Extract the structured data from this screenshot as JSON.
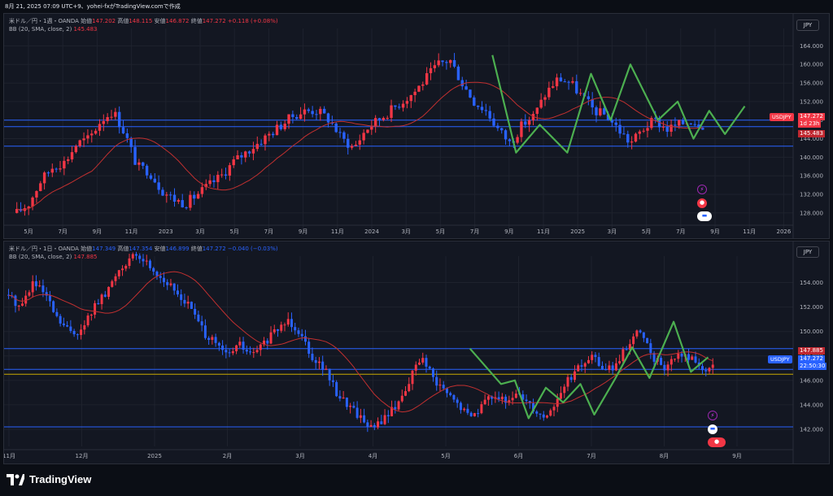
{
  "topbar": {
    "text": "8月 21, 2025 07:09 UTC+9、yohei-fxがTradingView.comで作成"
  },
  "colors": {
    "bg": "#131722",
    "up": "#f23645",
    "down": "#2962ff",
    "hline": "#2962ff",
    "bbline": "#c23030",
    "zigzag": "#4caf50",
    "yellow": "#c8a800"
  },
  "pane1": {
    "legend_title": "米ドル／円・1週・OANDA",
    "open_label": "始値",
    "open_value": "147.202",
    "high_label": "高値",
    "high_value": "148.115",
    "low_label": "安値",
    "low_value": "146.872",
    "close_label": "終値",
    "close_value": "147.272",
    "change": "+0.118 (+0.08%)",
    "bb_label": "BB (20, SMA, close, 2)",
    "bb_value": "145.483",
    "currency": "JPY",
    "symbol": "USDJPY",
    "price_tag": "147.272",
    "countdown": "1d 23h",
    "bb_tag": "145.483",
    "y_ticks": [
      "164.000",
      "160.000",
      "156.000",
      "152.000",
      "148.000",
      "144.000",
      "140.000",
      "136.000",
      "132.000",
      "128.000"
    ],
    "x_ticks": [
      "5月",
      "7月",
      "9月",
      "11月",
      "2023",
      "3月",
      "5月",
      "7月",
      "9月",
      "11月",
      "2024",
      "3月",
      "5月",
      "7月",
      "9月",
      "11月",
      "2025",
      "3月",
      "5月",
      "7月",
      "9月",
      "11月",
      "2026"
    ],
    "hlines": [
      148.0,
      146.6,
      142.4
    ]
  },
  "pane2": {
    "legend_title": "米ドル／円・1日・OANDA",
    "open_label": "始値",
    "open_value": "147.349",
    "high_label": "高値",
    "high_value": "147.354",
    "low_label": "安値",
    "low_value": "146.899",
    "close_label": "終値",
    "close_value": "147.272",
    "change": "−0.040 (−0.03%)",
    "bb_label": "BB (20, SMA, close, 2)",
    "bb_value": "147.885",
    "currency": "JPY",
    "symbol": "USDJPY",
    "bb_tag": "147.885",
    "price_tag": "147.272",
    "countdown": "22:50:30",
    "y_ticks": [
      "154.000",
      "152.000",
      "150.000",
      "148.000",
      "146.000",
      "144.000",
      "142.000"
    ],
    "x_ticks": [
      "11月",
      "12月",
      "2025",
      "2月",
      "3月",
      "4月",
      "5月",
      "6月",
      "7月",
      "8月",
      "9月"
    ],
    "hlines": [
      148.6,
      146.9,
      146.5,
      142.2
    ]
  },
  "brand": {
    "name": "TradingView"
  },
  "chart_data": [
    {
      "type": "candlestick",
      "title": "米ドル／円・1週・OANDA",
      "ylim": [
        125,
        166
      ],
      "x_ticks": [
        "5月",
        "7月",
        "9月",
        "11月",
        "2023",
        "3月",
        "5月",
        "7月",
        "9月",
        "11月",
        "2024",
        "3月",
        "5月",
        "7月",
        "9月",
        "11月",
        "2025",
        "3月",
        "5月",
        "7月",
        "9月",
        "11月",
        "2026"
      ],
      "path": [
        128,
        130,
        135,
        138,
        139,
        143,
        144,
        148,
        150,
        145,
        138,
        137,
        133,
        131,
        130,
        132,
        134,
        136,
        139,
        141,
        143,
        145,
        147,
        149,
        150,
        150,
        148,
        144,
        142,
        146,
        148,
        150,
        152,
        154,
        157,
        160,
        161,
        156,
        152,
        150,
        146,
        143,
        147,
        149,
        154,
        157,
        156,
        153,
        150,
        149,
        146,
        143,
        146,
        148,
        146,
        147,
        148,
        147
      ],
      "bb_value": 145.483,
      "horizontal_lines": [
        148.0,
        146.6,
        142.4
      ]
    },
    {
      "type": "candlestick",
      "title": "米ドル／円・1日・OANDA",
      "ylim": [
        141,
        155.5
      ],
      "x_ticks": [
        "11月",
        "12月",
        "2025",
        "2月",
        "3月",
        "4月",
        "5月",
        "6月",
        "7月",
        "8月",
        "9月"
      ],
      "path": [
        153,
        152,
        154,
        153,
        151,
        150,
        150,
        152,
        153,
        155,
        156,
        156,
        155,
        154,
        153,
        152,
        150,
        149,
        148,
        149,
        148,
        149,
        150,
        151,
        150,
        148,
        147,
        145,
        144,
        143,
        142,
        143,
        144,
        146,
        148,
        146,
        145,
        144,
        143,
        144,
        145,
        144,
        145,
        144,
        143,
        144,
        146,
        147,
        148,
        147,
        147,
        149,
        150,
        148,
        147,
        148,
        148,
        147,
        147
      ],
      "bb_value": 147.885,
      "horizontal_lines": [
        148.6,
        146.9,
        146.5,
        142.2
      ]
    }
  ]
}
